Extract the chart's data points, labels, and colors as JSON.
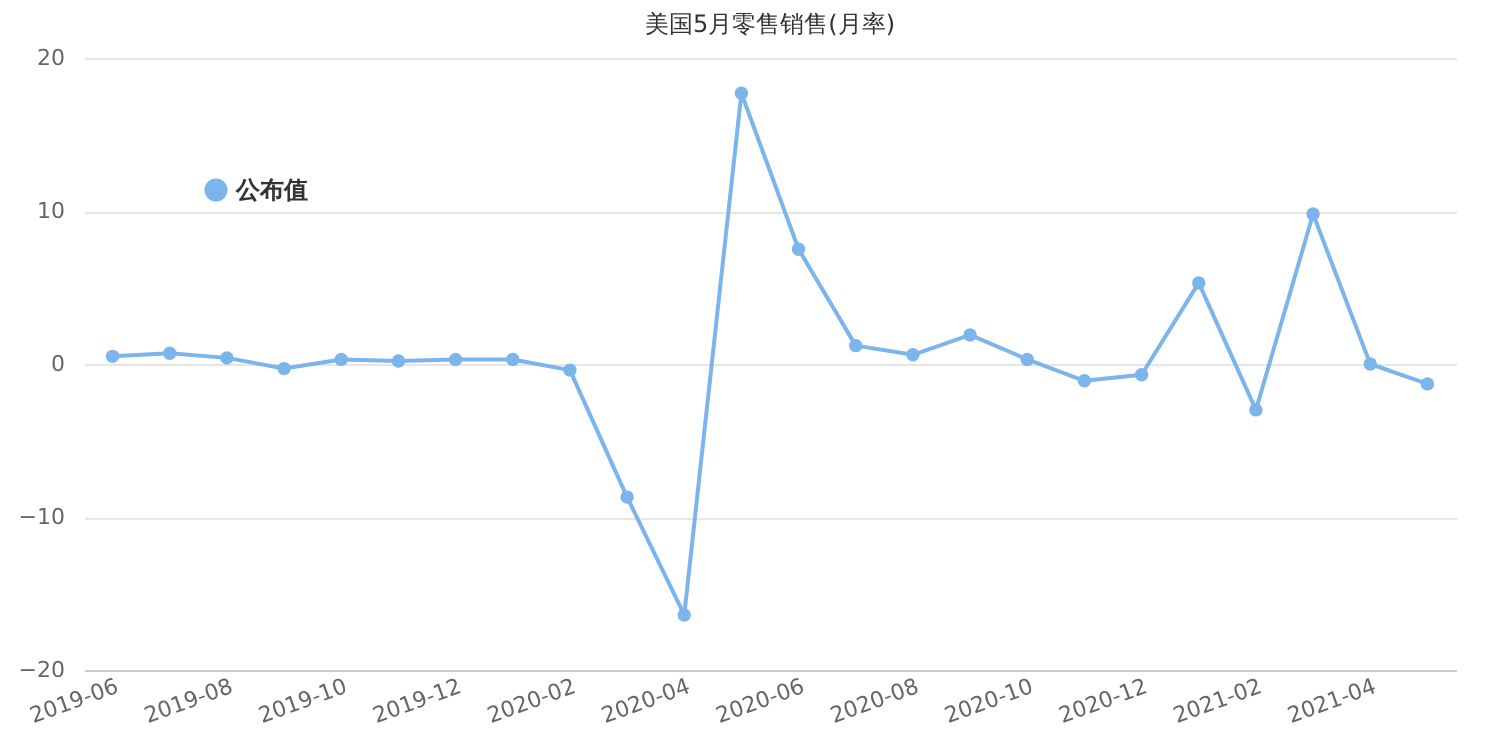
{
  "chart_data": {
    "type": "line",
    "title": "美国5月零售销售(月率)",
    "categories": [
      "2019-06",
      null,
      "2019-08",
      null,
      "2019-10",
      null,
      "2019-12",
      null,
      "2020-02",
      null,
      "2020-04",
      null,
      "2020-06",
      null,
      "2020-08",
      null,
      "2020-10",
      null,
      "2020-12",
      null,
      "2021-02",
      null,
      "2021-04",
      null
    ],
    "series": [
      {
        "name": "公布值",
        "color": "#7cb5ec",
        "values": [
          0.5,
          0.7,
          0.4,
          -0.3,
          0.3,
          0.2,
          0.3,
          0.3,
          -0.4,
          -8.7,
          -16.4,
          17.7,
          7.5,
          1.2,
          0.6,
          1.9,
          0.3,
          -1.1,
          -0.7,
          5.3,
          -3.0,
          9.8,
          0.0,
          -1.3
        ]
      }
    ],
    "ylim": [
      -20,
      20
    ],
    "yticks": [
      -20,
      -10,
      0,
      10,
      20
    ],
    "grid": "y",
    "legend": "top left",
    "marker": "circle"
  }
}
